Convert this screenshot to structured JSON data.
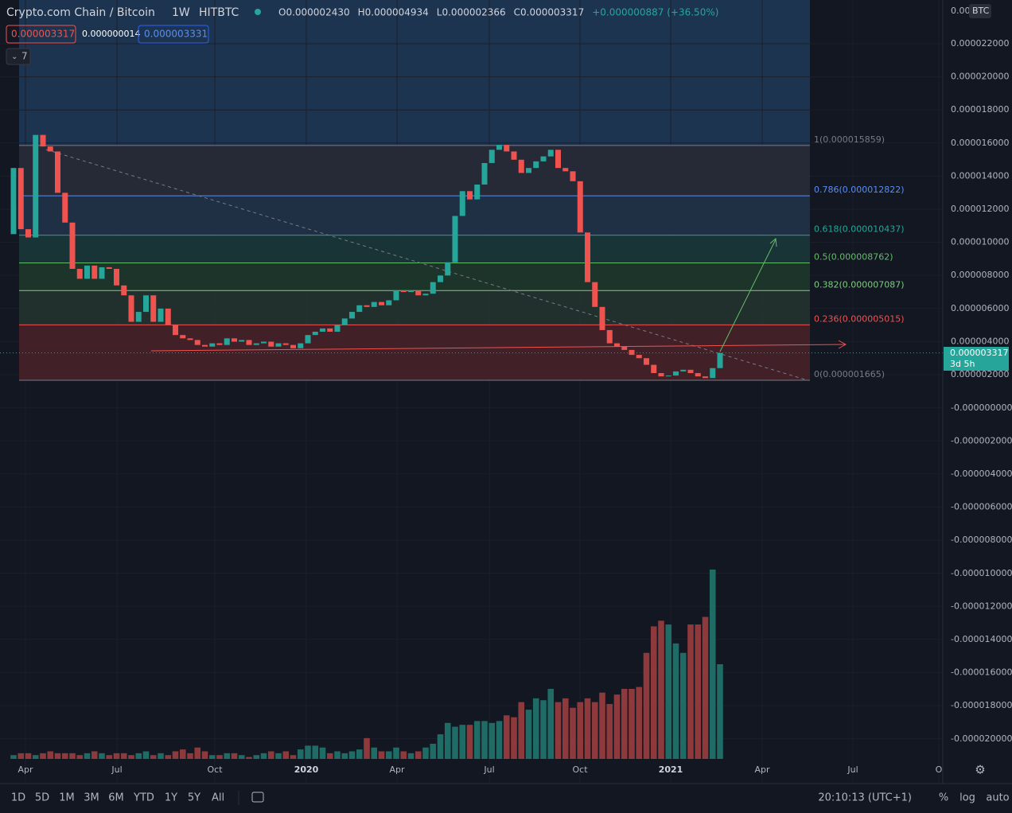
{
  "header": {
    "symbol": "Crypto.com Chain / Bitcoin",
    "interval": "1W",
    "exchange": "HITBTC",
    "ohlc": [
      "O0.000002430",
      "H0.000004934",
      "L0.000002366",
      "C0.000003317",
      "+0.000000887 (+36.50%)"
    ],
    "boxes": [
      "0.000003317",
      "0.000000014",
      "0.000003331"
    ],
    "indicator_count": "7"
  },
  "price_axis": {
    "currency": "BTC",
    "top_label": "0.00",
    "labels": [
      "0.000022000",
      "0.000020000",
      "0.000018000",
      "0.000016000",
      "0.000014000",
      "0.000012000",
      "0.000010000",
      "0.000008000",
      "0.000006000",
      "0.000004000",
      "0.000002000",
      "-0.000000000",
      "-0.000002000",
      "-0.000004000",
      "-0.000006000",
      "-0.000008000",
      "-0.000010000",
      "-0.000012000",
      "-0.000014000",
      "-0.000016000",
      "-0.000018000",
      "-0.000020000"
    ],
    "current_price": "0.000003317",
    "countdown": "3d 5h"
  },
  "time_axis": [
    "Apr",
    "Jul",
    "Oct",
    "2020",
    "Apr",
    "Jul",
    "Oct",
    "2021",
    "Apr",
    "Jul",
    "O"
  ],
  "fib_levels": [
    {
      "label": "1(0.000015859)",
      "price": 1.5859e-05
    },
    {
      "label": "0.786(0.000012822)",
      "price": 1.2822e-05
    },
    {
      "label": "0.618(0.000010437)",
      "price": 1.0437e-05
    },
    {
      "label": "0.5(0.000008762)",
      "price": 8.762e-06
    },
    {
      "label": "0.382(0.000007087)",
      "price": 7.087e-06
    },
    {
      "label": "0.236(0.000005015)",
      "price": 5.015e-06
    },
    {
      "label": "0(0.000001665)",
      "price": 1.665e-06
    }
  ],
  "candles": {
    "first_open": 1.05e-05,
    "close": [
      1.45e-05,
      1.08e-05,
      1.03e-05,
      1.65e-05,
      1.58e-05,
      1.55e-05,
      1.3e-05,
      1.12e-05,
      8.4e-06,
      7.8e-06,
      8.6e-06,
      7.8e-06,
      8.5e-06,
      8.4e-06,
      7.4e-06,
      6.8e-06,
      5.2e-06,
      5.8e-06,
      6.8e-06,
      5.2e-06,
      6e-06,
      5e-06,
      4.4e-06,
      4.2e-06,
      4.1e-06,
      3.8e-06,
      3.7e-06,
      3.9e-06,
      3.8e-06,
      4.2e-06,
      4e-06,
      4.1e-06,
      3.8e-06,
      3.9e-06,
      4e-06,
      3.7e-06,
      3.9e-06,
      3.8e-06,
      3.6e-06,
      3.9e-06,
      4.4e-06,
      4.6e-06,
      4.8e-06,
      4.6e-06,
      5e-06,
      5.4e-06,
      5.8e-06,
      6.2e-06,
      6.1e-06,
      6.4e-06,
      6.2e-06,
      6.5e-06,
      7.1e-06,
      7e-06,
      7.1e-06,
      6.8e-06,
      6.9e-06,
      7.6e-06,
      8e-06,
      8.8e-06,
      1.16e-05,
      1.31e-05,
      1.26e-05,
      1.35e-05,
      1.48e-05,
      1.56e-05,
      1.59e-05,
      1.55e-05,
      1.5e-05,
      1.42e-05,
      1.45e-05,
      1.49e-05,
      1.52e-05,
      1.56e-05,
      1.45e-05,
      1.43e-05,
      1.37e-05,
      1.06e-05,
      7.6e-06,
      6.1e-06,
      4.7e-06,
      3.9e-06,
      3.7e-06,
      3.5e-06,
      3.2e-06,
      3e-06,
      2.6e-06,
      2.1e-06,
      1.9e-06,
      1.95e-06,
      2.2e-06,
      2.3e-06,
      2.1e-06,
      1.9e-06,
      1.8e-06,
      2.4e-06,
      3.317e-06
    ],
    "volume": [
      2,
      3,
      3,
      2,
      3,
      4,
      3,
      3,
      3,
      2,
      3,
      4,
      3,
      2,
      3,
      3,
      2,
      3,
      4,
      2,
      3,
      2,
      4,
      5,
      3,
      6,
      4,
      2,
      2,
      3,
      3,
      2,
      1,
      2,
      3,
      4,
      3,
      4,
      2,
      5,
      7,
      7,
      6,
      3,
      4,
      3,
      4,
      5,
      11,
      6,
      4,
      4,
      6,
      4,
      3,
      4,
      6,
      8,
      13,
      19,
      17,
      18,
      18,
      20,
      20,
      19,
      20,
      23,
      22,
      30,
      26,
      32,
      31,
      37,
      30,
      32,
      27,
      30,
      32,
      30,
      35,
      29,
      34,
      37,
      37,
      38,
      56,
      70,
      73,
      71,
      61,
      56,
      71,
      71,
      75,
      100,
      50
    ]
  },
  "toolbar": {
    "ranges": [
      "1D",
      "5D",
      "1M",
      "3M",
      "6M",
      "YTD",
      "1Y",
      "5Y",
      "All"
    ],
    "clock": "20:10:13 (UTC+1)",
    "options": [
      "%",
      "log",
      "auto"
    ]
  }
}
